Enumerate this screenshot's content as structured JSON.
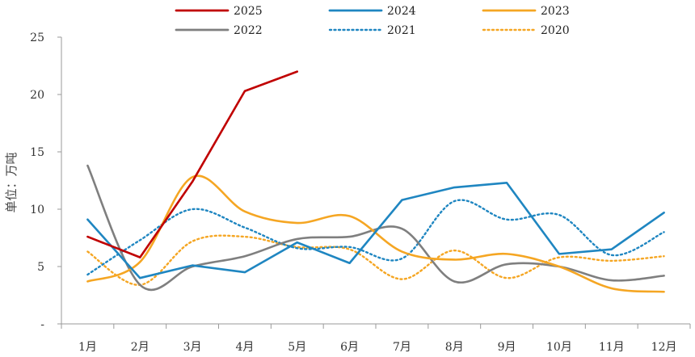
{
  "chart_data": {
    "type": "line",
    "title": "",
    "ylabel": "单位：万吨",
    "xlabel": "",
    "ylim": [
      0,
      25
    ],
    "yticks": [
      0,
      5,
      10,
      15,
      20,
      25
    ],
    "ytick_labels": [
      "-",
      "5",
      "10",
      "15",
      "20",
      "25"
    ],
    "categories": [
      "1月",
      "2月",
      "3月",
      "4月",
      "5月",
      "6月",
      "7月",
      "8月",
      "9月",
      "10月",
      "11月",
      "12月"
    ],
    "legend_position": "top",
    "series": [
      {
        "name": "2025",
        "color": "#c00000",
        "style": "solid",
        "smooth": false,
        "values": [
          7.6,
          5.8,
          12.4,
          20.3,
          22.0,
          null,
          null,
          null,
          null,
          null,
          null,
          null
        ]
      },
      {
        "name": "2024",
        "color": "#1f86c1",
        "style": "solid",
        "smooth": false,
        "values": [
          9.1,
          4.0,
          5.1,
          4.5,
          7.1,
          5.3,
          10.8,
          11.9,
          12.3,
          6.1,
          6.5,
          9.7
        ]
      },
      {
        "name": "2023",
        "color": "#f5a623",
        "style": "solid",
        "smooth": true,
        "values": [
          3.7,
          5.4,
          12.8,
          9.8,
          8.8,
          9.4,
          6.3,
          5.6,
          6.1,
          5.0,
          3.1,
          2.8
        ]
      },
      {
        "name": "2022",
        "color": "#7f7f7f",
        "style": "solid",
        "smooth": true,
        "values": [
          13.8,
          3.4,
          5.0,
          5.9,
          7.4,
          7.6,
          8.3,
          3.7,
          5.2,
          5.0,
          3.8,
          4.2
        ]
      },
      {
        "name": "2021",
        "color": "#1f86c1",
        "style": "dotted",
        "smooth": true,
        "values": [
          4.3,
          7.3,
          10.0,
          8.4,
          6.6,
          6.7,
          5.7,
          10.7,
          9.1,
          9.5,
          6.0,
          8.0
        ]
      },
      {
        "name": "2020",
        "color": "#f5a623",
        "style": "dotted",
        "smooth": true,
        "values": [
          6.3,
          3.4,
          7.2,
          7.6,
          6.7,
          6.5,
          3.9,
          6.4,
          4.0,
          5.8,
          5.5,
          5.9
        ]
      }
    ]
  }
}
